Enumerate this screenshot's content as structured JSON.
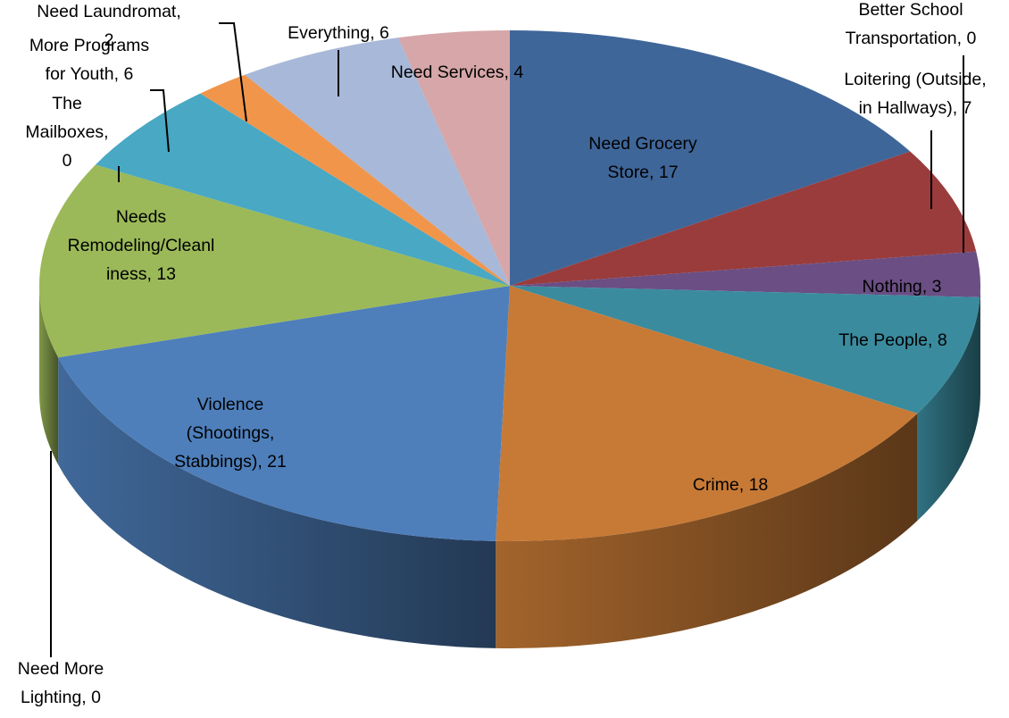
{
  "chart_data": {
    "type": "pie",
    "style": "3d",
    "series": [
      {
        "name": "Need Grocery Store",
        "value": 17,
        "color": "#3F6699",
        "label_lines": [
          "Need Grocery",
          "Store, 17"
        ]
      },
      {
        "name": "Loitering (Outside, in Hallways)",
        "value": 7,
        "color": "#9A3C3C",
        "label_lines": [
          "Loitering (Outside,",
          "in Hallways), 7"
        ]
      },
      {
        "name": "Better School Transportation",
        "value": 0,
        "color": "#76923C",
        "label_lines": [
          "Better School",
          "Transportation, 0"
        ]
      },
      {
        "name": "Nothing",
        "value": 3,
        "color": "#6A4E84",
        "label_lines": [
          "Nothing, 3"
        ]
      },
      {
        "name": "The People",
        "value": 8,
        "color": "#3A8B9E",
        "label_lines": [
          "The People, 8"
        ]
      },
      {
        "name": "Crime",
        "value": 18,
        "color": "#C77A36",
        "label_lines": [
          "Crime, 18"
        ]
      },
      {
        "name": "Violence (Shootings, Stabbings)",
        "value": 21,
        "color": "#4E7FBB",
        "label_lines": [
          "Violence",
          "(Shootings,",
          "Stabbings), 21"
        ]
      },
      {
        "name": "Need More Lighting",
        "value": 0,
        "color": "#9BB958",
        "label_lines": [
          "Need More",
          "Lighting, 0"
        ]
      },
      {
        "name": "Needs Remodeling/Cleanliness",
        "value": 13,
        "color": "#9BB958",
        "label_lines": [
          "Needs",
          "Remodeling/Cleanl",
          "iness, 13"
        ]
      },
      {
        "name": "The Mailboxes",
        "value": 0,
        "color": "#49A8C4",
        "label_lines": [
          "The",
          "Mailboxes,",
          "0"
        ]
      },
      {
        "name": "More Programs for Youth",
        "value": 6,
        "color": "#49A8C4",
        "label_lines": [
          "More Programs",
          "for Youth, 6"
        ]
      },
      {
        "name": "Need Laundromat",
        "value": 2,
        "color": "#F0954A",
        "label_lines": [
          "Need Laundromat,",
          "2"
        ]
      },
      {
        "name": "Everything",
        "value": 6,
        "color": "#A8B8D8",
        "label_lines": [
          "Everything, 6"
        ]
      },
      {
        "name": "Need Services",
        "value": 4,
        "color": "#D6A6A8",
        "label_lines": [
          "Need Services, 4"
        ]
      }
    ]
  }
}
